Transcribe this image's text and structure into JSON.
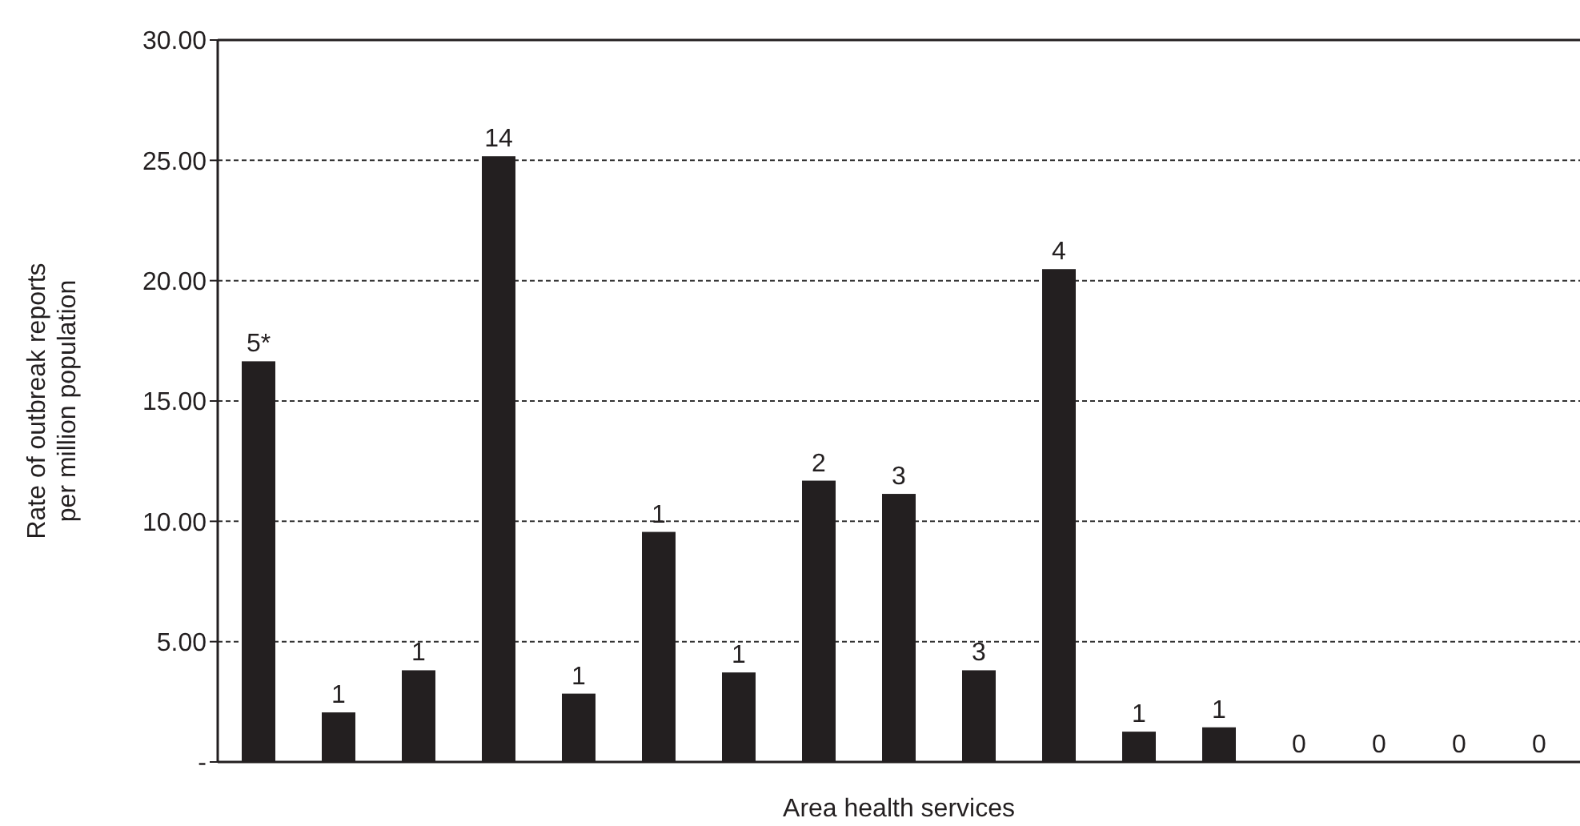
{
  "chart_data": {
    "type": "bar",
    "xlabel": "Area health services",
    "ylabel": "Rate of outbreak reports per million population",
    "categories": [
      null,
      null,
      null,
      null,
      null,
      null,
      null,
      null,
      null,
      null,
      null,
      null,
      null,
      null,
      null,
      null,
      null
    ],
    "values": [
      16.65,
      2.06,
      3.81,
      25.17,
      2.84,
      9.56,
      3.72,
      11.69,
      11.14,
      3.81,
      20.48,
      1.26,
      1.44,
      0,
      0,
      0,
      0
    ],
    "annotations": [
      "5*",
      "1",
      "1",
      "14",
      "1",
      "1",
      "1",
      "2",
      "3",
      "3",
      "4",
      "1",
      "1",
      "0",
      "0",
      "0",
      "0"
    ],
    "color": "#231f20",
    "ylim": [
      0,
      30
    ],
    "yticks": [
      {
        "value": 0,
        "label": "-"
      },
      {
        "value": 5,
        "label": "5.00"
      },
      {
        "value": 10,
        "label": "10.00"
      },
      {
        "value": 15,
        "label": "15.00"
      },
      {
        "value": 20,
        "label": "20.00"
      },
      {
        "value": 25,
        "label": "25.00"
      },
      {
        "value": 30,
        "label": "30.00"
      }
    ],
    "grid": "y"
  }
}
